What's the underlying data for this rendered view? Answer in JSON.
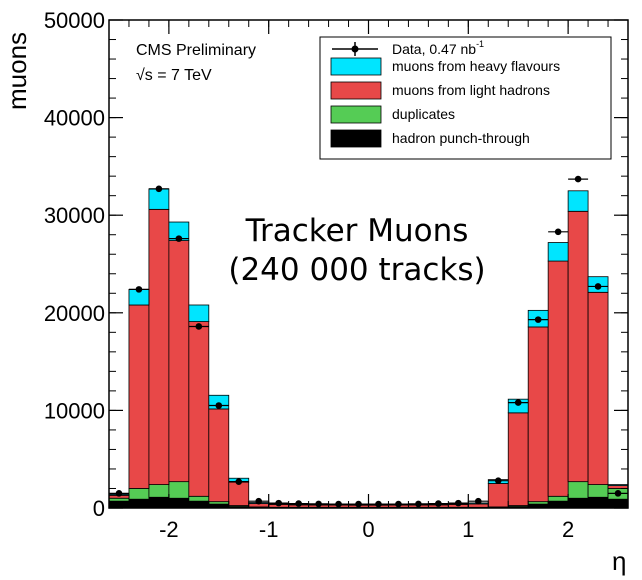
{
  "chart_data": {
    "type": "bar",
    "stacked": true,
    "xlabel": "η",
    "ylabel": "muons",
    "xlim": [
      -2.6,
      2.6
    ],
    "ylim": [
      0,
      50000
    ],
    "x_ticks": [
      -2,
      -1,
      0,
      1,
      2
    ],
    "y_ticks": [
      0,
      10000,
      20000,
      30000,
      40000,
      50000
    ],
    "bin_edges": [
      -2.6,
      -2.4,
      -2.2,
      -2.0,
      -1.8,
      -1.6,
      -1.4,
      -1.2,
      -1.0,
      -0.8,
      -0.6,
      -0.4,
      -0.2,
      0.0,
      0.2,
      0.4,
      0.6,
      0.8,
      1.0,
      1.2,
      1.4,
      1.6,
      1.8,
      2.0,
      2.2,
      2.4,
      2.6
    ],
    "series": [
      {
        "name": "hadron punch-through",
        "color": "#000000",
        "values": [
          700,
          900,
          1100,
          1000,
          700,
          400,
          150,
          50,
          30,
          30,
          30,
          30,
          30,
          30,
          30,
          30,
          30,
          30,
          30,
          50,
          150,
          400,
          700,
          1000,
          1100,
          900
        ]
      },
      {
        "name": "duplicates",
        "color": "#55cc55",
        "values": [
          300,
          1100,
          1300,
          1700,
          500,
          250,
          100,
          60,
          40,
          40,
          40,
          40,
          40,
          40,
          40,
          40,
          40,
          40,
          40,
          60,
          100,
          250,
          500,
          1700,
          1300,
          1100
        ]
      },
      {
        "name": "muons from light hadrons",
        "color": "#e84848",
        "values": [
          300,
          18800,
          28200,
          24700,
          17900,
          9500,
          2400,
          350,
          300,
          250,
          230,
          230,
          220,
          220,
          230,
          230,
          250,
          300,
          350,
          2400,
          9500,
          17900,
          24100,
          27700,
          19700,
          300
        ]
      },
      {
        "name": "muons from heavy flavours",
        "color": "#00e5ff",
        "values": [
          100,
          1600,
          2100,
          1900,
          1700,
          1400,
          400,
          100,
          60,
          50,
          50,
          50,
          50,
          50,
          50,
          50,
          50,
          60,
          100,
          400,
          1400,
          1700,
          1900,
          2100,
          1600,
          100
        ]
      }
    ],
    "data_series": {
      "name": "Data, 0.47 nb",
      "superscript": "-1",
      "values": [
        1500,
        22400,
        32700,
        27600,
        18600,
        10500,
        2700,
        700,
        500,
        450,
        420,
        400,
        400,
        400,
        400,
        420,
        450,
        500,
        700,
        2800,
        10800,
        19300,
        28300,
        33700,
        22700,
        1500
      ]
    },
    "annotations": [
      "CMS Preliminary",
      "√s = 7 TeV",
      "Tracker Muons",
      "(240 000 tracks)"
    ],
    "legend_position": "top-right"
  }
}
